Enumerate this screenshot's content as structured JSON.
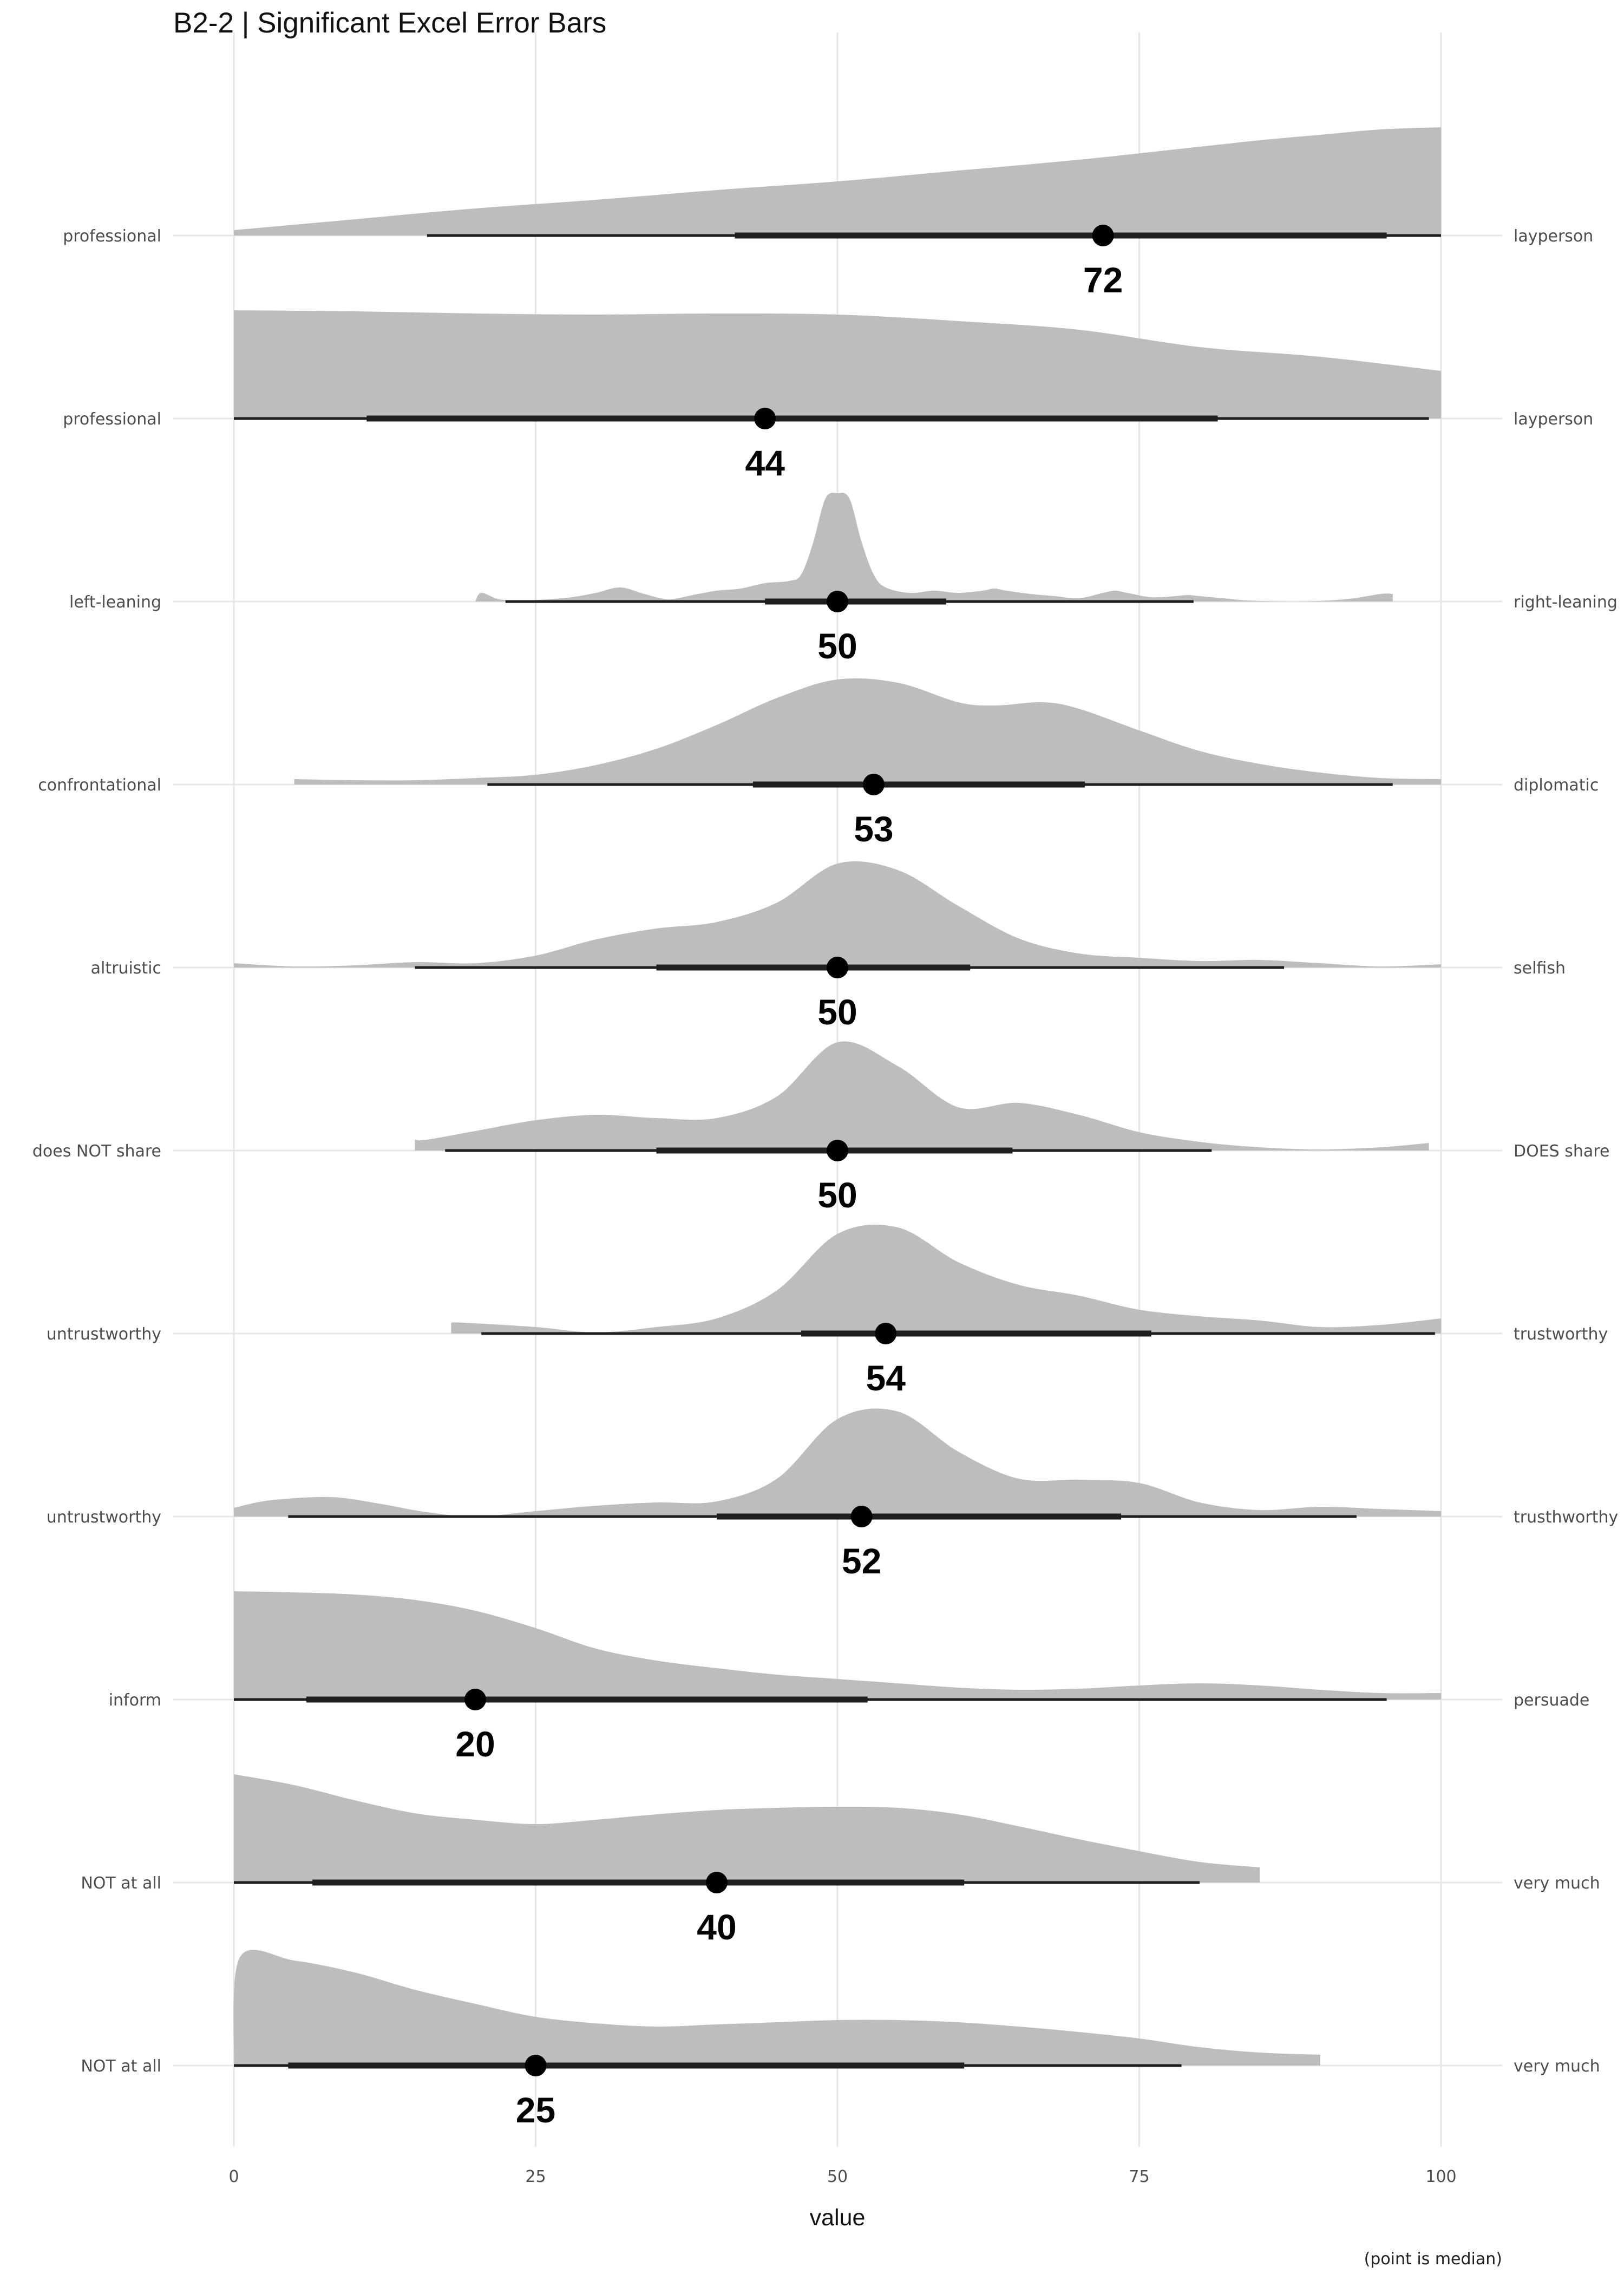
{
  "chart_data": {
    "type": "ridgeline",
    "title": "B2-2 | Significant Excel Error Bars",
    "xlabel": "value",
    "caption": "(point is median)",
    "xlim": [
      0,
      100
    ],
    "x_ticks": [
      0,
      25,
      50,
      75,
      100
    ],
    "grid": true,
    "colors": {
      "density": "#bdbdbd",
      "interval": "#1f1f1f",
      "point": "#000000",
      "grid": "#e6e6e6"
    },
    "rows": [
      {
        "left_label": "professional",
        "right_label": "layperson",
        "median": 72,
        "median_label": "72",
        "interval_66": [
          41.5,
          95.5
        ],
        "interval_95": [
          16,
          100
        ],
        "density": {
          "x": [
            0,
            10,
            20,
            30,
            40,
            50,
            60,
            70,
            80,
            85,
            90,
            95,
            100
          ],
          "y": [
            0.05,
            0.15,
            0.25,
            0.33,
            0.42,
            0.5,
            0.6,
            0.7,
            0.82,
            0.88,
            0.93,
            0.98,
            1.0
          ]
        }
      },
      {
        "left_label": "professional",
        "right_label": "layperson",
        "median": 44,
        "median_label": "44",
        "interval_66": [
          11,
          81.5
        ],
        "interval_95": [
          0,
          99
        ],
        "density": {
          "x": [
            0,
            10,
            20,
            30,
            40,
            50,
            60,
            70,
            80,
            90,
            100
          ],
          "y": [
            1.0,
            0.99,
            0.97,
            0.96,
            0.97,
            0.96,
            0.9,
            0.82,
            0.66,
            0.57,
            0.44
          ]
        }
      },
      {
        "left_label": "left-leaning",
        "right_label": "right-leaning",
        "median": 50,
        "median_label": "50",
        "interval_66": [
          44,
          59
        ],
        "interval_95": [
          22.5,
          79.5
        ],
        "density": {
          "x": [
            20,
            20.5,
            22,
            24,
            26,
            28,
            30,
            32,
            34,
            36,
            38,
            40,
            42,
            44,
            46,
            47,
            48,
            49,
            50,
            51,
            52,
            53,
            54,
            56,
            58,
            60,
            62,
            63,
            64,
            66,
            68,
            70,
            72,
            73,
            74,
            76,
            78,
            79,
            80,
            82,
            84,
            88,
            92,
            95,
            96
          ],
          "y": [
            0,
            0.08,
            0.02,
            0.01,
            0.02,
            0.04,
            0.08,
            0.13,
            0.07,
            0.02,
            0.06,
            0.1,
            0.12,
            0.17,
            0.19,
            0.25,
            0.55,
            0.95,
            1.0,
            0.95,
            0.55,
            0.25,
            0.13,
            0.08,
            0.1,
            0.08,
            0.1,
            0.12,
            0.1,
            0.07,
            0.05,
            0.03,
            0.08,
            0.1,
            0.08,
            0.04,
            0.05,
            0.06,
            0.05,
            0.03,
            0.01,
            0.0,
            0.02,
            0.07,
            0.07
          ]
        }
      },
      {
        "left_label": "confrontational",
        "right_label": "diplomatic",
        "median": 53,
        "median_label": "53",
        "interval_66": [
          43,
          70.5
        ],
        "interval_95": [
          21,
          96
        ],
        "density": {
          "x": [
            5,
            10,
            15,
            20,
            25,
            30,
            35,
            40,
            45,
            50,
            55,
            60,
            63,
            67,
            70,
            75,
            80,
            85,
            90,
            95,
            100
          ],
          "y": [
            0.05,
            0.04,
            0.04,
            0.06,
            0.09,
            0.18,
            0.33,
            0.55,
            0.8,
            0.97,
            0.94,
            0.76,
            0.73,
            0.76,
            0.7,
            0.5,
            0.31,
            0.19,
            0.11,
            0.06,
            0.05
          ]
        }
      },
      {
        "left_label": "altruistic",
        "right_label": "selfish",
        "median": 50,
        "median_label": "50",
        "interval_66": [
          35,
          61
        ],
        "interval_95": [
          15,
          87
        ],
        "density": {
          "x": [
            0,
            5,
            10,
            15,
            20,
            25,
            30,
            35,
            40,
            45,
            50,
            55,
            60,
            65,
            70,
            75,
            80,
            85,
            90,
            95,
            100
          ],
          "y": [
            0.04,
            0.01,
            0.02,
            0.05,
            0.04,
            0.11,
            0.26,
            0.36,
            0.42,
            0.6,
            0.96,
            0.9,
            0.57,
            0.27,
            0.13,
            0.09,
            0.06,
            0.07,
            0.04,
            0.01,
            0.03
          ]
        }
      },
      {
        "left_label": "does NOT share",
        "right_label": "DOES share",
        "median": 50,
        "median_label": "50",
        "interval_66": [
          35,
          64.5
        ],
        "interval_95": [
          17.5,
          81
        ],
        "density": {
          "x": [
            15,
            16,
            20,
            25,
            30,
            35,
            40,
            45,
            50,
            55,
            60,
            65,
            70,
            75,
            80,
            85,
            90,
            95,
            99
          ],
          "y": [
            0.1,
            0.1,
            0.18,
            0.28,
            0.33,
            0.3,
            0.3,
            0.5,
            1.0,
            0.78,
            0.4,
            0.44,
            0.33,
            0.17,
            0.08,
            0.03,
            0.01,
            0.03,
            0.07
          ]
        }
      },
      {
        "left_label": "untrustworthy",
        "right_label": "trustworthy",
        "median": 54,
        "median_label": "54",
        "interval_66": [
          47,
          76
        ],
        "interval_95": [
          20.5,
          99.5
        ],
        "density": {
          "x": [
            18,
            19,
            25,
            30,
            35,
            40,
            45,
            50,
            55,
            60,
            65,
            70,
            75,
            80,
            85,
            90,
            95,
            100
          ],
          "y": [
            0.1,
            0.1,
            0.06,
            0.01,
            0.06,
            0.14,
            0.4,
            0.92,
            0.98,
            0.66,
            0.45,
            0.35,
            0.22,
            0.16,
            0.12,
            0.06,
            0.08,
            0.14
          ]
        }
      },
      {
        "left_label": "untrustworthy",
        "right_label": "trusthworthy",
        "median": 52,
        "median_label": "52",
        "interval_66": [
          40,
          73.5
        ],
        "interval_95": [
          4.5,
          93
        ],
        "density": {
          "x": [
            0,
            3,
            8,
            12,
            16,
            20,
            25,
            30,
            35,
            40,
            45,
            50,
            55,
            60,
            65,
            70,
            75,
            80,
            85,
            90,
            95,
            100
          ],
          "y": [
            0.08,
            0.15,
            0.18,
            0.12,
            0.04,
            0.0,
            0.05,
            0.1,
            0.13,
            0.14,
            0.35,
            0.9,
            0.97,
            0.6,
            0.35,
            0.34,
            0.31,
            0.13,
            0.06,
            0.09,
            0.07,
            0.05
          ]
        }
      },
      {
        "left_label": "inform",
        "right_label": "persuade",
        "median": 20,
        "median_label": "20",
        "interval_66": [
          6,
          52.5
        ],
        "interval_95": [
          0,
          95.5
        ],
        "density": {
          "x": [
            0,
            5,
            10,
            15,
            20,
            25,
            30,
            35,
            40,
            45,
            50,
            55,
            60,
            65,
            70,
            75,
            80,
            85,
            90,
            95,
            100
          ],
          "y": [
            1.0,
            0.99,
            0.97,
            0.92,
            0.82,
            0.66,
            0.47,
            0.36,
            0.29,
            0.23,
            0.19,
            0.15,
            0.11,
            0.09,
            0.1,
            0.13,
            0.15,
            0.13,
            0.09,
            0.06,
            0.06
          ]
        }
      },
      {
        "left_label": "NOT at all",
        "right_label": "very much",
        "median": 40,
        "median_label": "40",
        "interval_66": [
          6.5,
          60.5
        ],
        "interval_95": [
          0,
          80
        ],
        "density": {
          "x": [
            0,
            5,
            10,
            15,
            20,
            25,
            30,
            35,
            40,
            45,
            50,
            55,
            60,
            65,
            70,
            75,
            80,
            85
          ],
          "y": [
            1.0,
            0.9,
            0.76,
            0.64,
            0.58,
            0.54,
            0.58,
            0.63,
            0.67,
            0.69,
            0.7,
            0.69,
            0.63,
            0.52,
            0.4,
            0.29,
            0.19,
            0.14
          ]
        }
      },
      {
        "left_label": "NOT at all",
        "right_label": "very much",
        "median": 25,
        "median_label": "25",
        "interval_66": [
          4.5,
          60.5
        ],
        "interval_95": [
          0,
          78.5
        ],
        "density": {
          "x": [
            0,
            0.5,
            5,
            10,
            15,
            20,
            25,
            30,
            35,
            40,
            45,
            50,
            55,
            60,
            65,
            70,
            75,
            80,
            85,
            90
          ],
          "y": [
            0.0,
            1.0,
            0.97,
            0.86,
            0.7,
            0.57,
            0.45,
            0.39,
            0.36,
            0.38,
            0.4,
            0.42,
            0.42,
            0.4,
            0.36,
            0.31,
            0.25,
            0.17,
            0.12,
            0.1
          ]
        }
      }
    ]
  }
}
